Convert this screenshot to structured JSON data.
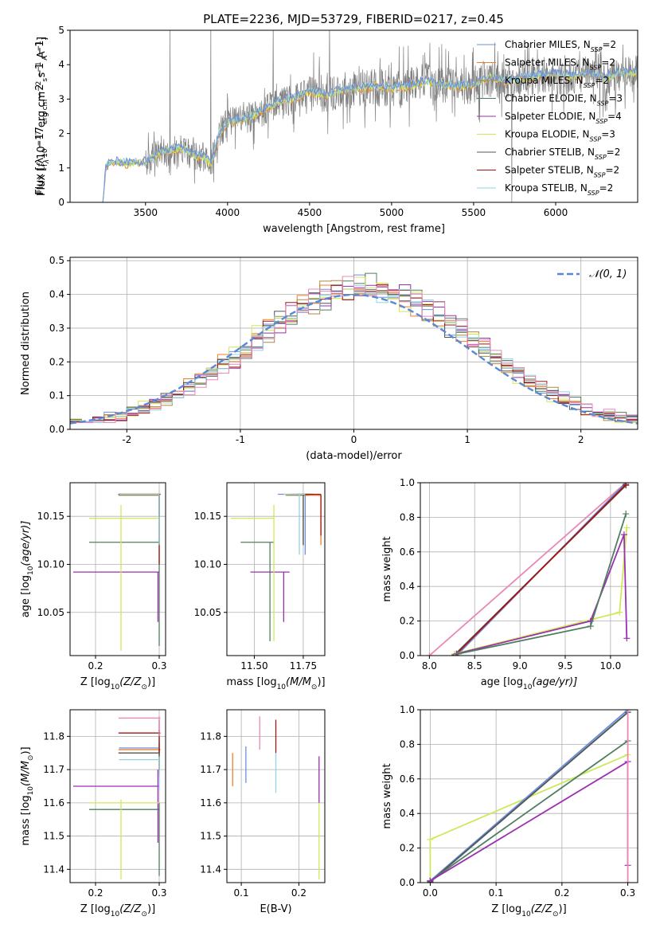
{
  "figure_title": "PLATE=2236, MJD=53729, FIBERID=0217, z=0.45",
  "colors": {
    "Chabrier MILES": "#6f8fd8",
    "Salpeter MILES": "#e9802f",
    "Kroupa MILES": "#ad8a3c",
    "Chabrier ELODIE": "#4f7f5f",
    "Salpeter ELODIE": "#9b2fb0",
    "Kroupa ELODIE": "#cfe85a",
    "Chabrier STELIB": "#555555",
    "Salpeter STELIB": "#a01818",
    "Kroupa STELIB": "#8fd6e0",
    "pink": "#e888b8",
    "normal": "#5a88d6"
  },
  "chart_data": [
    {
      "id": "spectrum",
      "type": "line",
      "title": "PLATE=2236, MJD=53729, FIBERID=0217, z=0.45",
      "xlabel": "wavelength [Angstrom, rest frame]",
      "ylabel_parts": [
        "Flux [",
        "f",
        "λ",
        "10",
        "−17",
        " erg cm",
        "−2",
        " s",
        "−1",
        " A",
        "−1",
        "]"
      ],
      "xlim": [
        3040,
        6500
      ],
      "ylim": [
        0,
        5
      ],
      "xticks": [
        3500,
        4000,
        4500,
        5000,
        5500,
        6000
      ],
      "yticks": [
        0,
        1,
        2,
        3,
        4,
        5
      ],
      "model_curve": {
        "x": [
          3240,
          3260,
          3300,
          3400,
          3500,
          3550,
          3600,
          3700,
          3750,
          3800,
          3850,
          3900,
          3950,
          4000,
          4100,
          4200,
          4300,
          4400,
          4500,
          4600,
          4700,
          4800,
          4900,
          5000,
          5100,
          5200,
          5300,
          5400,
          5500,
          5600,
          5700,
          5800,
          5900,
          6000,
          6100,
          6200,
          6300,
          6400
        ],
        "y": [
          0,
          1.05,
          1.15,
          1.1,
          1.15,
          1.3,
          1.45,
          1.55,
          1.5,
          1.35,
          1.3,
          1.1,
          2.0,
          2.3,
          2.4,
          2.6,
          2.9,
          3.0,
          3.2,
          3.1,
          3.25,
          3.3,
          3.35,
          3.3,
          3.35,
          3.5,
          3.4,
          3.35,
          3.4,
          3.6,
          3.5,
          3.6,
          3.65,
          3.7,
          3.65,
          3.7,
          3.6,
          3.75
        ]
      },
      "legend": [
        {
          "name": "Chabrier MILES",
          "sub": "SSP",
          "n": "2"
        },
        {
          "name": "Salpeter MILES",
          "sub": "SSP",
          "n": "2"
        },
        {
          "name": "Kroupa MILES",
          "sub": "SSP",
          "n": "2"
        },
        {
          "name": "Chabrier ELODIE",
          "sub": "SSP",
          "n": "3"
        },
        {
          "name": "Salpeter ELODIE",
          "sub": "SSP",
          "n": "4"
        },
        {
          "name": "Kroupa ELODIE",
          "sub": "SSP",
          "n": "3"
        },
        {
          "name": "Chabrier STELIB",
          "sub": "SSP",
          "n": "2"
        },
        {
          "name": "Salpeter STELIB",
          "sub": "SSP",
          "n": "2"
        },
        {
          "name": "Kroupa STELIB",
          "sub": "SSP",
          "n": "2"
        }
      ],
      "legend_placement": "right"
    },
    {
      "id": "residuals",
      "type": "line",
      "xlabel": "(data-model)/error",
      "ylabel": "Normed distribution",
      "xlim": [
        -2.5,
        2.5
      ],
      "ylim": [
        0,
        0.51
      ],
      "xticks": [
        -2,
        -1,
        0,
        1,
        2
      ],
      "yticks": [
        0.0,
        0.1,
        0.2,
        0.3,
        0.4,
        0.5
      ],
      "legend": [
        {
          "name": "𝒩(0, 1)"
        }
      ],
      "legend_placement": "top-right",
      "grid": true
    },
    {
      "id": "age-vs-Z",
      "type": "scatter",
      "xlabel_parts": [
        "Z [log",
        "10",
        "(Z/Z",
        "⊙",
        ")]"
      ],
      "ylabel_parts": [
        "age  [log",
        "10",
        "(age/yr)]"
      ],
      "xlim": [
        0.16,
        0.31
      ],
      "ylim": [
        10.005,
        10.185
      ],
      "xticks": [
        0.2,
        0.3
      ],
      "yticks": [
        10.05,
        10.1,
        10.15
      ],
      "grid": true,
      "points": [
        {
          "s": "Chabrier MILES",
          "x": 0.3,
          "xmin": 0.237,
          "xmax": 0.3,
          "y": 10.173,
          "ymin": 10.15,
          "ymax": 10.173
        },
        {
          "s": "Salpeter MILES",
          "x": 0.3,
          "xmin": 0.236,
          "xmax": 0.302,
          "y": 10.173,
          "ymin": 10.15,
          "ymax": 10.173
        },
        {
          "s": "Kroupa MILES",
          "x": 0.3,
          "xmin": 0.236,
          "xmax": 0.3,
          "y": 10.172,
          "ymin": 10.15,
          "ymax": 10.172
        },
        {
          "s": "Chabrier ELODIE",
          "x": 0.3,
          "xmin": 0.19,
          "xmax": 0.3,
          "y": 10.123,
          "ymin": 10.015,
          "ymax": 10.123
        },
        {
          "s": "Salpeter ELODIE",
          "x": 0.298,
          "xmin": 0.165,
          "xmax": 0.3,
          "y": 10.092,
          "ymin": 10.04,
          "ymax": 10.092
        },
        {
          "s": "Kroupa ELODIE",
          "x": 0.24,
          "xmin": 0.19,
          "xmax": 0.3,
          "y": 10.148,
          "ymin": 10.01,
          "ymax": 10.162
        },
        {
          "s": "Chabrier STELIB",
          "x": 0.3,
          "xmin": 0.236,
          "xmax": 0.3,
          "y": 10.173,
          "ymin": 10.12,
          "ymax": 10.173
        },
        {
          "s": "Salpeter STELIB",
          "x": 0.3,
          "xmin": 0.236,
          "xmax": 0.302,
          "y": 10.173,
          "ymin": 10.1,
          "ymax": 10.173
        },
        {
          "s": "Kroupa STELIB",
          "x": 0.3,
          "xmin": 0.237,
          "xmax": 0.3,
          "y": 10.173,
          "ymin": 10.12,
          "ymax": 10.173
        }
      ]
    },
    {
      "id": "age-vs-mass",
      "type": "scatter",
      "xlabel_parts": [
        "mass [log",
        "10",
        "(M/M",
        "⊙",
        ")]"
      ],
      "xlim": [
        11.36,
        11.86
      ],
      "ylim": [
        10.005,
        10.185
      ],
      "xticks": [
        11.5,
        11.75
      ],
      "yticks": [
        10.05,
        10.1,
        10.15
      ],
      "grid": true,
      "points": [
        {
          "s": "Chabrier MILES",
          "x": 11.76,
          "xmin": 11.62,
          "xmax": 11.78,
          "y": 10.173,
          "ymin": 10.11,
          "ymax": 10.173
        },
        {
          "s": "Salpeter MILES",
          "x": 11.84,
          "xmin": 11.72,
          "xmax": 11.84,
          "y": 10.172,
          "ymin": 10.12,
          "ymax": 10.172
        },
        {
          "s": "Kroupa MILES",
          "x": 11.75,
          "xmin": 11.66,
          "xmax": 11.78,
          "y": 10.172,
          "ymin": 10.12,
          "ymax": 10.172
        },
        {
          "s": "Chabrier ELODIE",
          "x": 11.58,
          "xmin": 11.43,
          "xmax": 11.6,
          "y": 10.123,
          "ymin": 10.02,
          "ymax": 10.123
        },
        {
          "s": "Salpeter ELODIE",
          "x": 11.65,
          "xmin": 11.48,
          "xmax": 11.68,
          "y": 10.092,
          "ymin": 10.04,
          "ymax": 10.092
        },
        {
          "s": "Kroupa ELODIE",
          "x": 11.6,
          "xmin": 11.38,
          "xmax": 11.6,
          "y": 10.148,
          "ymin": 10.02,
          "ymax": 10.162
        },
        {
          "s": "Chabrier STELIB",
          "x": 11.75,
          "xmin": 11.68,
          "xmax": 11.8,
          "y": 10.173,
          "ymin": 10.12,
          "ymax": 10.173
        },
        {
          "s": "Salpeter STELIB",
          "x": 11.84,
          "xmin": 11.72,
          "xmax": 11.84,
          "y": 10.173,
          "ymin": 10.13,
          "ymax": 10.173
        },
        {
          "s": "Kroupa STELIB",
          "x": 11.73,
          "xmin": 11.65,
          "xmax": 11.76,
          "y": 10.173,
          "ymin": 10.11,
          "ymax": 10.173
        }
      ]
    },
    {
      "id": "weight-vs-age",
      "type": "line",
      "xlabel_parts": [
        "age  [log",
        "10",
        "(age/yr)]"
      ],
      "ylabel": "mass weight",
      "xlim": [
        7.9,
        10.3
      ],
      "ylim": [
        0,
        1
      ],
      "xticks": [
        8.0,
        8.5,
        9.0,
        9.5,
        10.0
      ],
      "yticks": [
        0.0,
        0.2,
        0.4,
        0.6,
        0.8,
        1.0
      ],
      "grid": true,
      "series": [
        {
          "s": "pink",
          "x": [
            8.0,
            10.17
          ],
          "y": [
            0.0,
            1.0
          ]
        },
        {
          "s": "Kroupa STELIB",
          "x": [
            8.3,
            10.17
          ],
          "y": [
            0.01,
            0.99
          ]
        },
        {
          "s": "Chabrier MILES",
          "x": [
            8.32,
            10.17
          ],
          "y": [
            0.01,
            1.0
          ]
        },
        {
          "s": "Chabrier STELIB",
          "x": [
            8.28,
            10.17
          ],
          "y": [
            0.005,
            0.985
          ]
        },
        {
          "s": "Salpeter STELIB",
          "x": [
            8.3,
            10.17
          ],
          "y": [
            0.01,
            0.99
          ]
        },
        {
          "s": "Kroupa ELODIE",
          "x": [
            8.28,
            9.8,
            10.1,
            10.18
          ],
          "y": [
            0.01,
            0.21,
            0.25,
            0.74
          ]
        },
        {
          "s": "Salpeter ELODIE",
          "x": [
            8.3,
            9.78,
            10.15,
            10.18
          ],
          "y": [
            0.01,
            0.2,
            0.7,
            0.1
          ]
        },
        {
          "s": "Chabrier ELODIE",
          "x": [
            8.32,
            9.78,
            10.17
          ],
          "y": [
            0.01,
            0.17,
            0.82
          ]
        }
      ]
    },
    {
      "id": "mass-vs-Z",
      "type": "scatter",
      "xlabel_parts": [
        "Z [log",
        "10",
        "(Z/Z",
        "⊙",
        ")]"
      ],
      "ylabel_parts": [
        "mass [log",
        "10",
        "(M/M",
        "⊙",
        ")]"
      ],
      "xlim": [
        0.16,
        0.31
      ],
      "ylim": [
        11.36,
        11.88
      ],
      "xticks": [
        0.2,
        0.3
      ],
      "yticks": [
        11.4,
        11.5,
        11.6,
        11.7,
        11.8
      ],
      "grid": true,
      "points": [
        {
          "s": "Chabrier MILES",
          "x": 0.3,
          "xmin": 0.237,
          "xmax": 0.3,
          "y": 11.765,
          "ymin": 11.7,
          "ymax": 11.78
        },
        {
          "s": "Salpeter MILES",
          "x": 0.3,
          "xmin": 0.236,
          "xmax": 0.302,
          "y": 11.76,
          "ymin": 11.7,
          "ymax": 11.78
        },
        {
          "s": "Kroupa MILES",
          "x": 0.3,
          "xmin": 0.236,
          "xmax": 0.3,
          "y": 11.75,
          "ymin": 11.68,
          "ymax": 11.76
        },
        {
          "s": "Chabrier ELODIE",
          "x": 0.3,
          "xmin": 0.19,
          "xmax": 0.3,
          "y": 11.58,
          "ymin": 11.38,
          "ymax": 11.6
        },
        {
          "s": "Salpeter ELODIE",
          "x": 0.298,
          "xmin": 0.165,
          "xmax": 0.3,
          "y": 11.65,
          "ymin": 11.48,
          "ymax": 11.7
        },
        {
          "s": "Kroupa ELODIE",
          "x": 0.24,
          "xmin": 0.19,
          "xmax": 0.3,
          "y": 11.6,
          "ymin": 11.37,
          "ymax": 11.61
        },
        {
          "s": "Chabrier STELIB",
          "x": 0.3,
          "xmin": 0.236,
          "xmax": 0.3,
          "y": 11.75,
          "ymin": 11.7,
          "ymax": 11.82
        },
        {
          "s": "Salpeter STELIB",
          "x": 0.3,
          "xmin": 0.236,
          "xmax": 0.302,
          "y": 11.81,
          "ymin": 11.75,
          "ymax": 11.85
        },
        {
          "s": "Kroupa STELIB",
          "x": 0.3,
          "xmin": 0.237,
          "xmax": 0.3,
          "y": 11.73,
          "ymin": 11.64,
          "ymax": 11.74
        },
        {
          "s": "pink",
          "x": 0.3,
          "xmin": 0.236,
          "xmax": 0.302,
          "y": 11.855,
          "ymin": 11.8,
          "ymax": 11.86
        }
      ]
    },
    {
      "id": "mass-vs-ebv",
      "type": "scatter",
      "xlabel": "E(B-V)",
      "xlim": [
        0.075,
        0.245
      ],
      "ylim": [
        11.36,
        11.88
      ],
      "xticks": [
        0.1,
        0.2
      ],
      "yticks": [
        11.4,
        11.5,
        11.6,
        11.7,
        11.8
      ],
      "grid": true,
      "points": [
        {
          "s": "Salpeter MILES",
          "x": 0.085,
          "ymin": 11.65,
          "ymax": 11.75
        },
        {
          "s": "Chabrier MILES",
          "x": 0.108,
          "ymin": 11.66,
          "ymax": 11.77
        },
        {
          "s": "pink",
          "x": 0.132,
          "ymin": 11.76,
          "ymax": 11.86
        },
        {
          "s": "Kroupa STELIB",
          "x": 0.16,
          "ymin": 11.63,
          "ymax": 11.75
        },
        {
          "s": "Salpeter STELIB",
          "x": 0.16,
          "ymin": 11.75,
          "ymax": 11.85
        },
        {
          "s": "Salpeter ELODIE",
          "x": 0.235,
          "ymin": 11.6,
          "ymax": 11.74
        },
        {
          "s": "Kroupa ELODIE",
          "x": 0.235,
          "ymin": 11.37,
          "ymax": 11.6
        }
      ]
    },
    {
      "id": "weight-vs-Z",
      "type": "line",
      "xlabel_parts": [
        "Z [log",
        "10",
        "(Z/Z",
        "⊙",
        ")]"
      ],
      "ylabel": "mass weight",
      "xlim": [
        -0.015,
        0.315
      ],
      "ylim": [
        0,
        1
      ],
      "xticks": [
        0.0,
        0.1,
        0.2,
        0.3
      ],
      "yticks": [
        0.0,
        0.2,
        0.4,
        0.6,
        0.8,
        1.0
      ],
      "grid": true,
      "series": [
        {
          "s": "Kroupa ELODIE",
          "x": [
            0.0,
            0.0,
            0.3
          ],
          "y": [
            0.01,
            0.25,
            0.74
          ]
        },
        {
          "s": "Kroupa STELIB",
          "x": [
            0.0,
            0.3
          ],
          "y": [
            0.0,
            0.99
          ]
        },
        {
          "s": "Chabrier MILES",
          "x": [
            0.0,
            0.3
          ],
          "y": [
            0.01,
            1.0
          ]
        },
        {
          "s": "Chabrier STELIB",
          "x": [
            0.0,
            0.3
          ],
          "y": [
            0.005,
            0.985
          ]
        },
        {
          "s": "Chabrier ELODIE",
          "x": [
            0.0,
            0.3
          ],
          "y": [
            0.01,
            0.82
          ]
        },
        {
          "s": "Salpeter ELODIE",
          "x": [
            0.0,
            0.3,
            0.3
          ],
          "y": [
            0.01,
            0.7,
            0.1
          ]
        },
        {
          "s": "pink",
          "x": [
            0.3,
            0.3
          ],
          "y": [
            0.0,
            1.0
          ]
        }
      ]
    }
  ]
}
